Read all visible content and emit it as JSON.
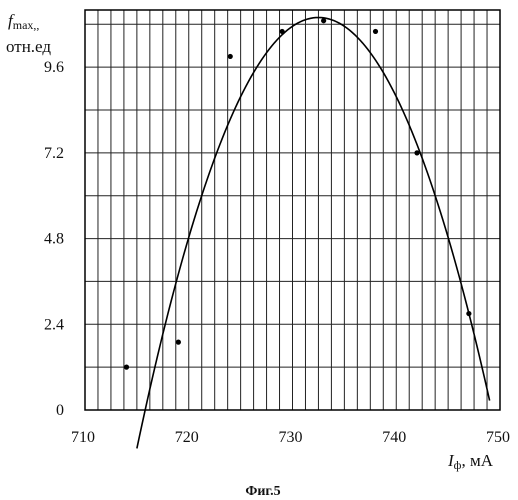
{
  "chart_data": {
    "type": "scatter",
    "title": "",
    "caption": "Фиг.5",
    "ylabel": {
      "symbol": "f",
      "subscript": "max,,",
      "unit": "отн.ед"
    },
    "xlabel": {
      "symbol": "I",
      "subscript": "ф",
      "unit": ", мА"
    },
    "xlim": [
      710,
      750
    ],
    "ylim": [
      0,
      11.2
    ],
    "xticks": [
      710,
      720,
      730,
      740,
      750
    ],
    "xtick_labels": [
      "710",
      "720",
      "730",
      "740",
      "750"
    ],
    "yticks": [
      0,
      2.4,
      4.8,
      7.2,
      9.6
    ],
    "ytick_labels": [
      "0",
      "2.4",
      "4.8",
      "7.2",
      "9.6"
    ],
    "grid": true,
    "grid_minor_x": 1.25,
    "grid_minor_y": 1.2,
    "series": [
      {
        "kind": "points",
        "x": [
          714,
          719,
          724,
          729,
          733,
          738,
          742,
          747
        ],
        "y": [
          1.2,
          1.9,
          9.9,
          10.6,
          10.9,
          10.6,
          7.2,
          2.7
        ]
      },
      {
        "kind": "fit-curve",
        "shape": "parabola",
        "vertex": [
          732.5,
          10.99
        ],
        "a": -0.0394,
        "x_range": [
          715,
          749
        ]
      }
    ]
  }
}
